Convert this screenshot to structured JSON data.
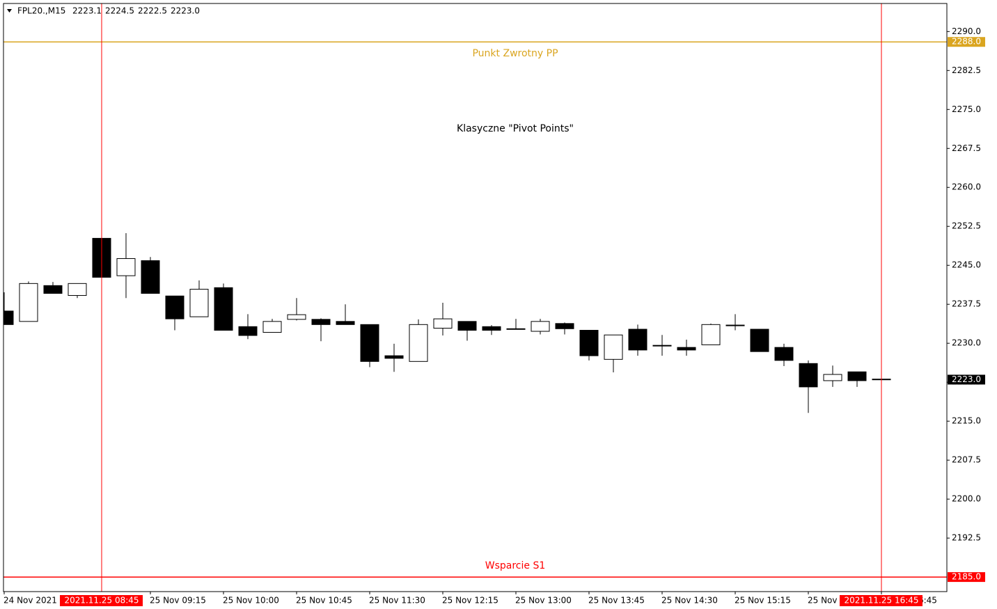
{
  "chart_data": {
    "type": "candlestick",
    "title": "Klasyczne \"Pivot Points\"",
    "header": {
      "symbol": "FPL20.,M15",
      "ohlc": [
        {
          "value": 2223.1,
          "label": "2223.1"
        },
        {
          "value": 2224.5,
          "label": "2224.5"
        },
        {
          "value": 2222.5,
          "label": "2222.5"
        },
        {
          "value": 2223.0,
          "label": "2223.0"
        }
      ]
    },
    "categories": [
      "24 Nov 2021",
      null,
      null,
      null,
      null,
      null,
      "25 Nov 09:15",
      null,
      null,
      "25 Nov 10:00",
      null,
      null,
      "25 Nov 10:45",
      null,
      null,
      "25 Nov 11:30",
      null,
      null,
      "25 Nov 12:15",
      null,
      null,
      "25 Nov 13:00",
      null,
      null,
      "25 Nov 13:45",
      null,
      null,
      "25 Nov 14:30",
      null,
      null,
      "25 Nov 15:15",
      null,
      null,
      "25 Nov 16:00",
      null,
      null,
      "25 Nov 16:45"
    ],
    "open": [
      2236.2,
      2234.2,
      2241.1,
      2239.2,
      2250.2,
      2243.0,
      2245.9,
      2239.1,
      2235.1,
      2240.7,
      2233.2,
      2232.1,
      2234.6,
      2234.6,
      2234.2,
      2233.6,
      2227.6,
      2226.5,
      2232.9,
      2234.2,
      2233.2,
      2232.8,
      2232.3,
      2233.8,
      2232.5,
      2226.9,
      2232.7,
      2229.6,
      2229.2,
      2229.7,
      2233.5,
      2232.7,
      2229.2,
      2226.1,
      2222.8,
      2224.5,
      2223.1
    ],
    "high": [
      2239.8,
      2241.9,
      2241.8,
      2241.5,
      2250.2,
      2251.2,
      2246.6,
      2239.1,
      2242.1,
      2241.5,
      2235.6,
      2234.7,
      2238.7,
      2234.8,
      2237.5,
      2233.6,
      2229.9,
      2234.6,
      2237.8,
      2234.2,
      2233.5,
      2234.7,
      2234.7,
      2234.0,
      2232.5,
      2231.6,
      2233.6,
      2231.6,
      2230.7,
      2233.8,
      2235.6,
      2232.7,
      2229.9,
      2226.7,
      2225.7,
      2224.5,
      2224.5
    ],
    "low": [
      2233.6,
      2234.2,
      2239.6,
      2238.7,
      2242.7,
      2238.7,
      2239.6,
      2232.5,
      2235.1,
      2232.5,
      2230.8,
      2232.1,
      2234.4,
      2230.4,
      2233.6,
      2225.4,
      2224.5,
      2226.5,
      2231.5,
      2230.5,
      2231.6,
      2232.7,
      2231.7,
      2231.7,
      2226.7,
      2224.4,
      2227.6,
      2227.6,
      2227.6,
      2229.7,
      2232.5,
      2228.4,
      2225.6,
      2216.6,
      2221.6,
      2221.6,
      2222.5
    ],
    "close": [
      2233.6,
      2241.5,
      2239.6,
      2241.5,
      2242.7,
      2246.3,
      2239.6,
      2234.7,
      2240.4,
      2232.5,
      2231.5,
      2234.2,
      2235.5,
      2233.6,
      2233.6,
      2226.5,
      2227.1,
      2233.6,
      2234.7,
      2232.5,
      2232.5,
      2232.8,
      2234.2,
      2232.8,
      2227.6,
      2231.6,
      2228.7,
      2229.5,
      2228.7,
      2233.6,
      2233.4,
      2228.4,
      2226.7,
      2221.6,
      2224.0,
      2222.8,
      2223.0
    ],
    "up_color": "#ffffff",
    "down_color": "#000000",
    "ylim": [
      2182.2,
      2295.4
    ],
    "yticks": [
      {
        "value": 2290,
        "label": "2290.0"
      },
      {
        "value": 2282.5,
        "label": "2282.5"
      },
      {
        "value": 2275,
        "label": "2275.0"
      },
      {
        "value": 2267.5,
        "label": "2267.5"
      },
      {
        "value": 2260,
        "label": "2260.0"
      },
      {
        "value": 2252.5,
        "label": "2252.5"
      },
      {
        "value": 2245,
        "label": "2245.0"
      },
      {
        "value": 2237.5,
        "label": "2237.5"
      },
      {
        "value": 2230,
        "label": "2230.0"
      },
      {
        "value": 2222.5,
        "label": "2222.5"
      },
      {
        "value": 2215,
        "label": "2215.0"
      },
      {
        "value": 2207.5,
        "label": "2207.5"
      },
      {
        "value": 2200,
        "label": "2200.0"
      },
      {
        "value": 2192.5,
        "label": "2192.5"
      }
    ],
    "lines": [
      {
        "name": "Punkt Zwrotny PP",
        "value": 2288.0,
        "label": "2288.0",
        "color": "#daa520"
      },
      {
        "name": "Wsparcie S1",
        "value": 2185.0,
        "label": "2185.0",
        "color": "#ff0000"
      }
    ],
    "last_price": {
      "value": 2223.0,
      "label": "2223.0"
    },
    "crosshairs": [
      {
        "category": 4,
        "label": "2021.11.25 08:45",
        "color": "#ff0000"
      },
      {
        "category": 36,
        "label": "2021.11.25 16:45",
        "color": "#ff0000"
      }
    ]
  }
}
